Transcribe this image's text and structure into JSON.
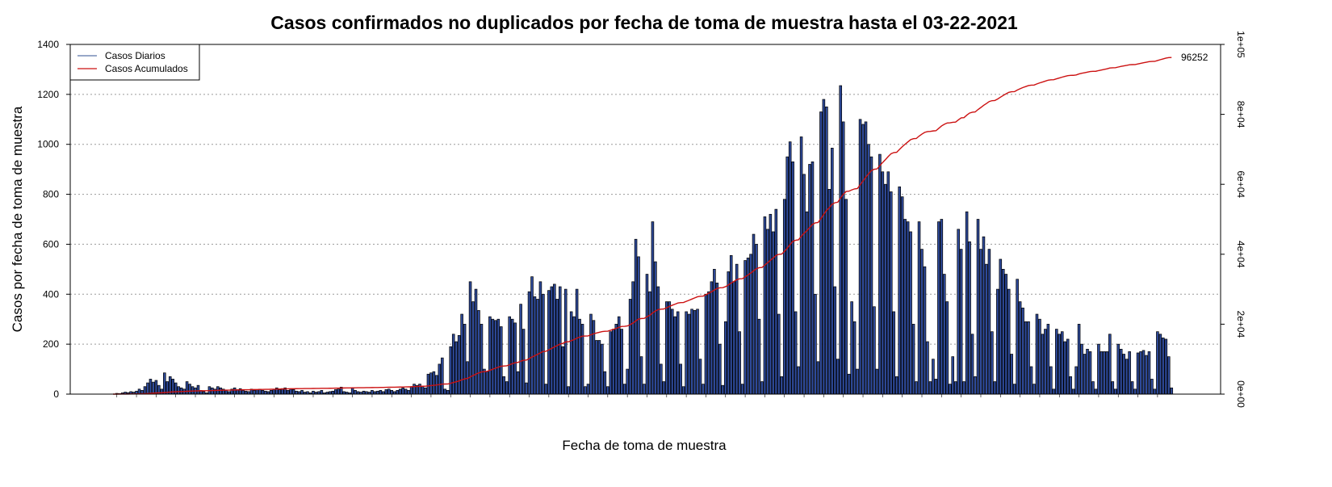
{
  "chart_data": {
    "type": "bar",
    "title": "Casos confirmados no duplicados por fecha de toma de muestra hasta el 03-22-2021",
    "xlabel": "Fecha de toma de muestra",
    "ylabel": "Casos por fecha de toma de muestra",
    "ylim": [
      0,
      1400
    ],
    "yticks": [
      "0",
      "200",
      "400",
      "600",
      "800",
      "1000",
      "1200",
      "1400"
    ],
    "y2lim": [
      0,
      100000
    ],
    "y2ticks": [
      "0e+00",
      "2e+04",
      "4e+04",
      "6e+04",
      "8e+04",
      "1e+05"
    ],
    "grid": "horizontal-dotted",
    "legend_position": "top-left",
    "legend": [
      "Casos Diarios",
      "Casos Acumulados"
    ],
    "series": [
      {
        "name": "Casos Diarios",
        "type": "bar",
        "axis": "left",
        "color": "#2e4a9a",
        "values": [
          3,
          2,
          5,
          8,
          6,
          10,
          8,
          12,
          20,
          15,
          30,
          45,
          60,
          48,
          55,
          35,
          20,
          85,
          50,
          70,
          60,
          45,
          30,
          25,
          20,
          50,
          40,
          30,
          25,
          35,
          15,
          10,
          5,
          30,
          25,
          20,
          30,
          25,
          20,
          15,
          10,
          20,
          25,
          18,
          22,
          15,
          12,
          10,
          20,
          15,
          18,
          20,
          15,
          12,
          10,
          15,
          20,
          25,
          18,
          22,
          25,
          15,
          20,
          18,
          12,
          10,
          15,
          8,
          10,
          5,
          12,
          8,
          10,
          15,
          5,
          8,
          10,
          12,
          18,
          20,
          28,
          10,
          8,
          5,
          25,
          15,
          10,
          8,
          12,
          10,
          8,
          15,
          10,
          12,
          15,
          10,
          18,
          20,
          15,
          10,
          15,
          20,
          25,
          20,
          15,
          30,
          40,
          35,
          40,
          30,
          25,
          80,
          85,
          90,
          75,
          120,
          145,
          20,
          15,
          190,
          240,
          210,
          235,
          320,
          280,
          130,
          450,
          370,
          420,
          335,
          280,
          100,
          90,
          310,
          300,
          295,
          300,
          270,
          70,
          50,
          310,
          300,
          285,
          90,
          360,
          260,
          45,
          410,
          470,
          390,
          380,
          450,
          400,
          40,
          415,
          430,
          440,
          380,
          430,
          190,
          420,
          30,
          330,
          310,
          420,
          300,
          280,
          30,
          40,
          320,
          295,
          215,
          215,
          200,
          90,
          30,
          250,
          260,
          280,
          310,
          260,
          40,
          100,
          380,
          450,
          620,
          550,
          150,
          40,
          480,
          410,
          690,
          530,
          430,
          120,
          50,
          370,
          370,
          340,
          310,
          330,
          120,
          30,
          330,
          320,
          340,
          335,
          340,
          140,
          40,
          400,
          410,
          450,
          500,
          445,
          200,
          35,
          290,
          490,
          555,
          450,
          520,
          250,
          40,
          535,
          545,
          560,
          640,
          600,
          300,
          50,
          710,
          660,
          720,
          650,
          740,
          320,
          70,
          780,
          950,
          1010,
          930,
          330,
          110,
          1030,
          880,
          730,
          920,
          930,
          400,
          130,
          1130,
          1180,
          1150,
          820,
          985,
          430,
          140,
          1235,
          1090,
          780,
          80,
          370,
          290,
          100,
          1100,
          1080,
          1090,
          1000,
          950,
          350,
          100,
          960,
          890,
          840,
          890,
          810,
          330,
          70,
          830,
          790,
          700,
          690,
          650,
          280,
          50,
          690,
          580,
          510,
          210,
          50,
          140,
          60,
          690,
          700,
          480,
          370,
          40,
          150,
          50,
          660,
          580,
          50,
          730,
          610,
          240,
          70,
          700,
          580,
          630,
          520,
          580,
          250,
          50,
          420,
          540,
          500,
          480,
          420,
          160,
          40,
          460,
          370,
          345,
          290,
          290,
          110,
          40,
          320,
          300,
          240,
          260,
          280,
          110,
          20,
          260,
          240,
          250,
          210,
          220,
          70,
          20,
          110,
          280,
          200,
          160,
          180,
          170,
          50,
          20,
          200,
          170,
          170,
          170,
          240,
          50,
          20,
          200,
          180,
          160,
          140,
          170,
          50,
          20,
          165,
          170,
          175,
          155,
          170,
          60,
          20,
          250,
          240,
          225,
          220,
          150,
          25
        ]
      },
      {
        "name": "Casos Acumulados",
        "type": "line",
        "axis": "right",
        "color": "#cc1111",
        "end_label": "96252"
      }
    ]
  }
}
